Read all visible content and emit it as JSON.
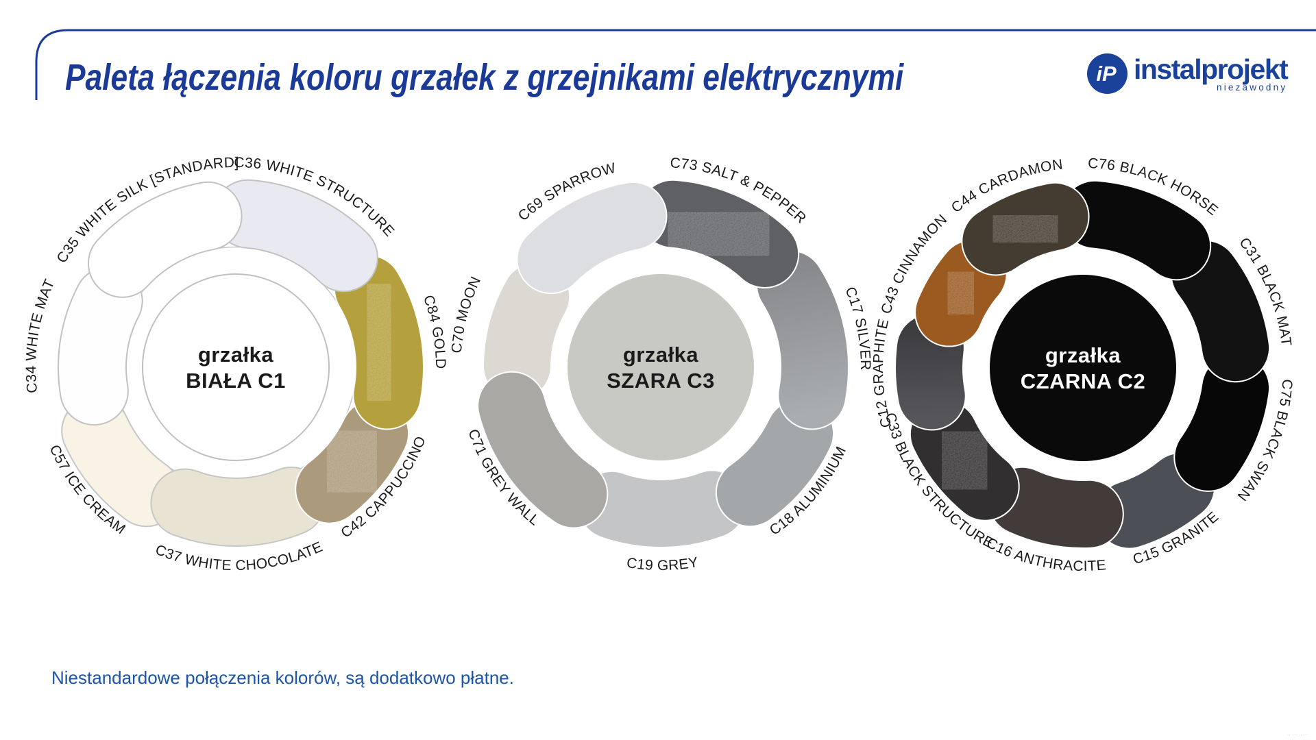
{
  "header": {
    "title": "Paleta łączenia koloru grzałek z grzejnikami elektrycznymi",
    "logo": {
      "monogram": "iP",
      "brand": "instalprojekt",
      "tagline": "niezawodny"
    }
  },
  "colors": {
    "accent_blue": "#1b3a97",
    "note_blue": "#1c55a8",
    "logo_blue": "#1a429b",
    "label_ink": "#1b1b1b"
  },
  "wheels": [
    {
      "id": "biala-c1",
      "center_label": [
        "grzałka",
        "BIAŁA C1"
      ],
      "center_fill": "#ffffff",
      "center_border": "#c0c0c0",
      "center_text_color": "#1b1b1b",
      "segments": [
        {
          "code": "C35",
          "name": "WHITE SILK [STANDARD]",
          "color": "#ffffff",
          "textured": false
        },
        {
          "code": "C36",
          "name": "WHITE STRUCTURE",
          "color": "#e9eaf1",
          "textured": false
        },
        {
          "code": "C84",
          "name": "GOLD",
          "color": "#b4a13d",
          "textured": true
        },
        {
          "code": "C42",
          "name": "CAPPUCCINO",
          "color": "#ab9a7b",
          "textured": true
        },
        {
          "code": "C37",
          "name": "WHITE CHOCOLATE",
          "color": "#e9e3d3",
          "textured": false
        },
        {
          "code": "C57",
          "name": "ICE CREAM",
          "color": "#f8f3e4",
          "textured": false
        },
        {
          "code": "C34",
          "name": "WHITE MAT",
          "color": "#fefefe",
          "textured": false
        }
      ]
    },
    {
      "id": "szara-c3",
      "center_label": [
        "grzałka",
        "SZARA C3"
      ],
      "center_fill": "#c9c9c3",
      "center_border": "",
      "center_text_color": "#1b1b1b",
      "segments": [
        {
          "code": "C69",
          "name": "SPARROW",
          "color": "#dddee2",
          "textured": false
        },
        {
          "code": "C73",
          "name": "SALT & PEPPER",
          "color": "#5e6064",
          "textured": true
        },
        {
          "code": "C17",
          "name": "SILVER",
          "color": "#88898c",
          "color2": "#aaadaf",
          "textured": false
        },
        {
          "code": "C18",
          "name": "ALUMINIUM",
          "color": "#a4a7aa",
          "textured": false
        },
        {
          "code": "C19",
          "name": "GREY",
          "color": "#c3c5c7",
          "textured": false
        },
        {
          "code": "C71",
          "name": "GREY WALL",
          "color": "#a9a8a4",
          "textured": false
        },
        {
          "code": "C70",
          "name": "MOON",
          "color": "#dbd9d1",
          "textured": false
        }
      ]
    },
    {
      "id": "czarna-c2",
      "center_label": [
        "grzałka",
        "CZARNA C2"
      ],
      "center_fill": "#0a0a0a",
      "center_border": "",
      "center_text_color": "#ffffff",
      "segments": [
        {
          "code": "C44",
          "name": "CARDAMON",
          "color": "#453c31",
          "textured": true
        },
        {
          "code": "C76",
          "name": "BLACK HORSE",
          "color": "#0a0a0a",
          "textured": false
        },
        {
          "code": "C31",
          "name": "BLACK MAT",
          "color": "#121212",
          "textured": false
        },
        {
          "code": "C75",
          "name": "BLACK SWAN",
          "color": "#070707",
          "textured": false
        },
        {
          "code": "C15",
          "name": "GRANITE",
          "color": "#4c5056",
          "textured": false
        },
        {
          "code": "C16",
          "name": "ANTHRACITE",
          "color": "#423b39",
          "textured": false
        },
        {
          "code": "C33",
          "name": "BLACK STRUCTURE",
          "color": "#312f30",
          "textured": true
        },
        {
          "code": "C12",
          "name": "GRAPHITE",
          "color": "#55555a",
          "color2": "#3d3d40",
          "textured": false
        },
        {
          "code": "C43",
          "name": "CINNAMON",
          "color": "#9a5a20",
          "textured": true
        }
      ]
    }
  ],
  "note": {
    "text": "Niestandardowe połączenia kolorów, są dodatkowo płatne."
  },
  "footer": {
    "illegible_micro_text": "·· ··· ·····"
  }
}
